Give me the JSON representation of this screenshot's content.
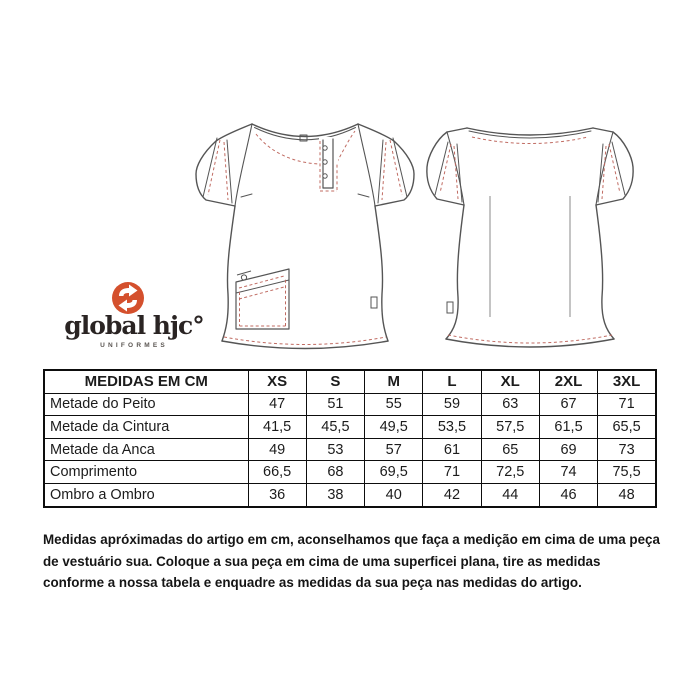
{
  "logo": {
    "brand_name": "global hjc°",
    "tagline": "UNIFORMES",
    "icon_color": "#d4502d",
    "text_color": "#2a2423"
  },
  "drawings": {
    "outline_color": "#555555",
    "stitch_color": "#c06b62"
  },
  "size_table": {
    "title": "MEDIDAS EM CM",
    "columns": [
      "XS",
      "S",
      "M",
      "L",
      "XL",
      "2XL",
      "3XL"
    ],
    "rows": [
      {
        "label": "Metade do Peito",
        "values": [
          "47",
          "51",
          "55",
          "59",
          "63",
          "67",
          "71"
        ]
      },
      {
        "label": "Metade da Cintura",
        "values": [
          "41,5",
          "45,5",
          "49,5",
          "53,5",
          "57,5",
          "61,5",
          "65,5"
        ]
      },
      {
        "label": "Metade da Anca",
        "values": [
          "49",
          "53",
          "57",
          "61",
          "65",
          "69",
          "73"
        ]
      },
      {
        "label": "Comprimento",
        "values": [
          "66,5",
          "68",
          "69,5",
          "71",
          "72,5",
          "74",
          "75,5"
        ]
      },
      {
        "label": "Ombro a Ombro",
        "values": [
          "36",
          "38",
          "40",
          "42",
          "44",
          "46",
          "48"
        ]
      }
    ]
  },
  "footer_note": {
    "lines": [
      "Medidas apróximadas do artigo em cm, aconselhamos que faça a medição em cima de uma peça",
      "de vestuário sua. Coloque a sua peça em cima de uma superficei plana, tire as medidas",
      "conforme a nossa tabela e enquadre as medidas da sua peça nas medidas do artigo."
    ]
  }
}
